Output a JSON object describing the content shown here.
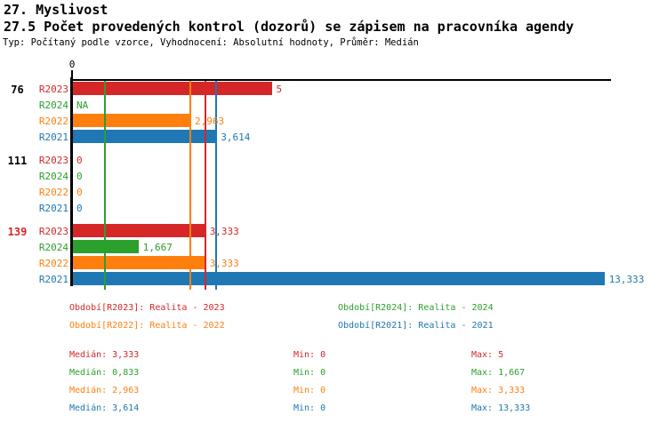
{
  "header": {
    "title": "27. Myslivost",
    "subtitle": "27.5 Počet provedených kontrol (dozorů) se zápisem na pracovníka agendy",
    "meta": "Typ: Počítaný podle vzorce, Vyhodnocení: Absolutní hodnoty, Průměr: Medián"
  },
  "colors": {
    "R2023": "#d62728",
    "R2024": "#2ca02c",
    "R2022": "#ff7f0e",
    "R2021": "#1f77b4",
    "axis": "#000000",
    "background": "#ffffff"
  },
  "chart_data": {
    "type": "bar",
    "orientation": "horizontal",
    "title": "27.5 Počet provedených kontrol (dozorů) se zápisem na pracovníka agendy",
    "xlim": [
      0,
      13.5
    ],
    "x_tick_labels": [
      "0"
    ],
    "grid": false,
    "legend_position": "bottom",
    "series_order": [
      "R2023",
      "R2024",
      "R2022",
      "R2021"
    ],
    "groups": [
      {
        "label": "76",
        "label_color": "black",
        "bars": [
          {
            "series": "R2023",
            "value": 5,
            "display": "5"
          },
          {
            "series": "R2024",
            "value": null,
            "display": "NA"
          },
          {
            "series": "R2022",
            "value": 2.963,
            "display": "2,963"
          },
          {
            "series": "R2021",
            "value": 3.614,
            "display": "3,614"
          }
        ]
      },
      {
        "label": "111",
        "label_color": "black",
        "bars": [
          {
            "series": "R2023",
            "value": 0,
            "display": "0"
          },
          {
            "series": "R2024",
            "value": 0,
            "display": "0"
          },
          {
            "series": "R2022",
            "value": 0,
            "display": "0"
          },
          {
            "series": "R2021",
            "value": 0,
            "display": "0"
          }
        ]
      },
      {
        "label": "139",
        "label_color": "red",
        "bars": [
          {
            "series": "R2023",
            "value": 3.333,
            "display": "3,333"
          },
          {
            "series": "R2024",
            "value": 1.667,
            "display": "1,667"
          },
          {
            "series": "R2022",
            "value": 3.333,
            "display": "3,333"
          },
          {
            "series": "R2021",
            "value": 13.333,
            "display": "13,333"
          }
        ]
      }
    ],
    "median_lines": [
      {
        "series": "R2024",
        "value": 0.833
      },
      {
        "series": "R2022",
        "value": 2.963
      },
      {
        "series": "R2023",
        "value": 3.333
      },
      {
        "series": "R2021",
        "value": 3.614
      }
    ],
    "legend": [
      {
        "series": "R2023",
        "label": "Období[R2023]: Realita - 2023"
      },
      {
        "series": "R2024",
        "label": "Období[R2024]: Realita - 2024"
      },
      {
        "series": "R2022",
        "label": "Období[R2022]: Realita - 2022"
      },
      {
        "series": "R2021",
        "label": "Období[R2021]: Realita - 2021"
      }
    ],
    "stats": [
      {
        "series": "R2023",
        "median": "Medián: 3,333",
        "min": "Min: 0",
        "max": "Max: 5"
      },
      {
        "series": "R2024",
        "median": "Medián: 0,833",
        "min": "Min: 0",
        "max": "Max: 1,667"
      },
      {
        "series": "R2022",
        "median": "Medián: 2,963",
        "min": "Min: 0",
        "max": "Max: 3,333"
      },
      {
        "series": "R2021",
        "median": "Medián: 3,614",
        "min": "Min: 0",
        "max": "Max: 13,333"
      }
    ]
  }
}
